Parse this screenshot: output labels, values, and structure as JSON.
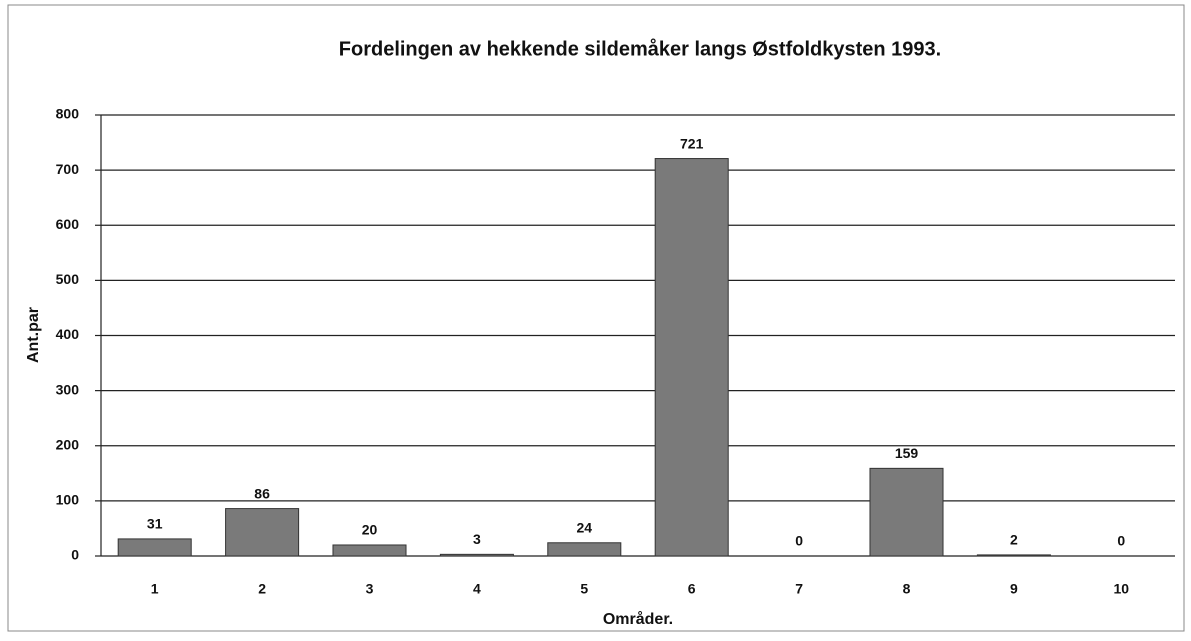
{
  "chart_data": {
    "type": "bar",
    "title": "Fordelingen av hekkende sildemåker langs Østfoldkysten 1993.",
    "x_label": "Områder.",
    "y_label": "Ant.par",
    "categories": [
      "1",
      "2",
      "3",
      "4",
      "5",
      "6",
      "7",
      "8",
      "9",
      "10"
    ],
    "values": [
      31,
      86,
      20,
      3,
      24,
      721,
      0,
      159,
      2,
      0
    ],
    "color": "#7a7a7a",
    "ylim": [
      0,
      800
    ],
    "yticks": [
      0,
      100,
      200,
      300,
      400,
      500,
      600,
      700,
      800
    ],
    "grid": true
  }
}
